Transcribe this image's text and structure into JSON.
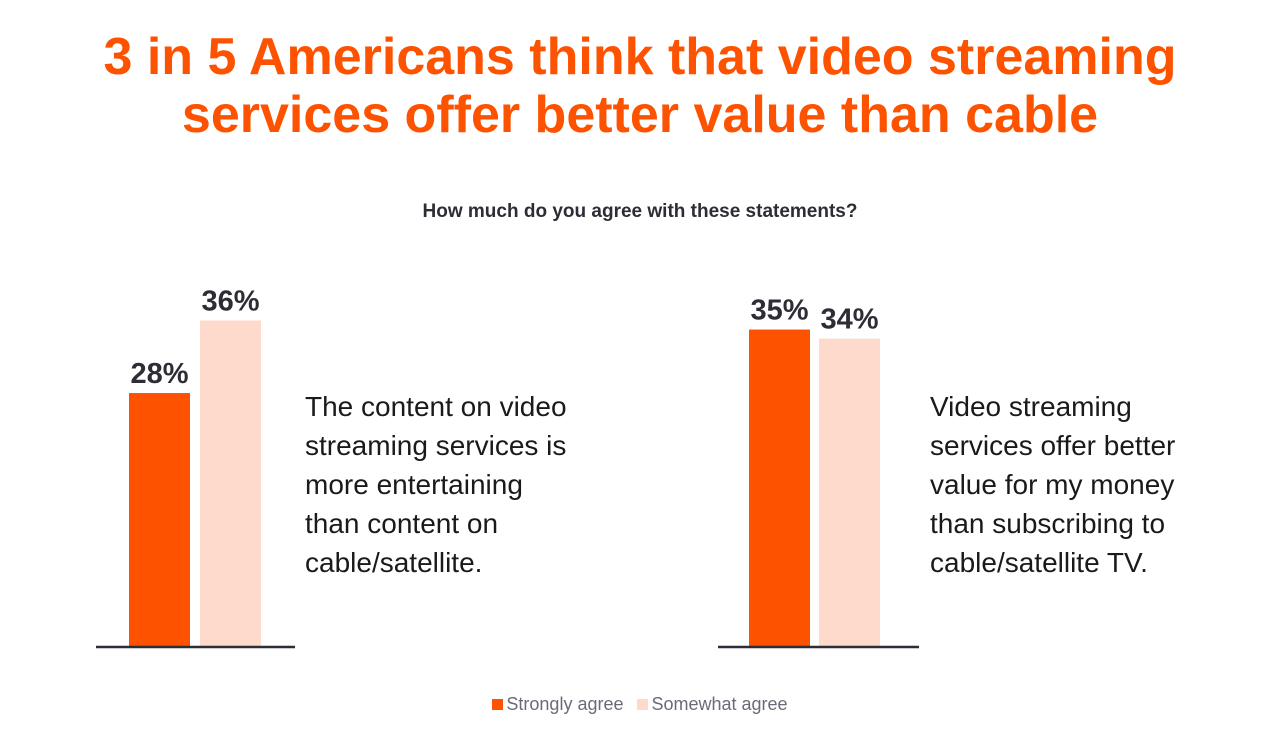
{
  "headline": {
    "line1": "3 in 5 Americans think that video streaming",
    "line2": "services offer better value than cable"
  },
  "question": "How much do you agree with these statements?",
  "colors": {
    "strongly_agree": "#fd5200",
    "somewhat_agree": "#fedacd",
    "headline": "#fd5200",
    "baseline": "#2d2d35"
  },
  "chart_data": {
    "type": "bar",
    "series": [
      {
        "name": "Strongly agree",
        "values": [
          28,
          35
        ]
      },
      {
        "name": "Somewhat agree",
        "values": [
          36,
          34
        ]
      }
    ],
    "categories": [
      "The content on video streaming services is more entertaining than content on cable/satellite.",
      "Video streaming services offer better value for my money than subscribing to cable/satellite TV."
    ],
    "value_labels": [
      [
        "28%",
        "36%"
      ],
      [
        "35%",
        "34%"
      ]
    ],
    "unit": "%",
    "ylim": [
      0,
      40
    ],
    "grid": false,
    "legend_position": "bottom-center"
  },
  "statements": {
    "first": {
      "line1": "The content on video",
      "line2": "streaming services is",
      "line3": "more entertaining",
      "line4": "than content on",
      "line5": "cable/satellite."
    },
    "second": {
      "line1": "Video streaming",
      "line2": "services offer better",
      "line3": "value for my money",
      "line4": "than subscribing to",
      "line5": "cable/satellite TV."
    }
  },
  "legend": {
    "strongly_agree": "Strongly agree",
    "somewhat_agree": "Somewhat agree"
  }
}
